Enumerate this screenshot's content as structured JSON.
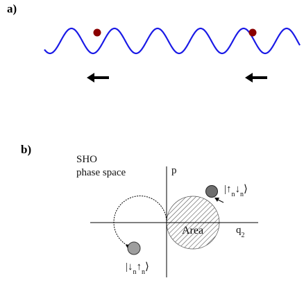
{
  "panel_a": {
    "label": "a)",
    "wave_color": "#1a1ae6",
    "ball_color": "#8b0000",
    "arrow_color": "#000000"
  },
  "panel_b": {
    "label": "b)",
    "title_line1": "SHO",
    "title_line2": "phase space",
    "axis_p": "p",
    "axis_q": "q",
    "axis_q_sub": "2",
    "area_label": "Area",
    "ket_top": {
      "open": "|",
      "s1": "↑",
      "s1_sub": "n",
      "s2": "↓",
      "s2_sub": "n",
      "close": "⟩"
    },
    "ket_bottom": {
      "open": "|",
      "s1": "↓",
      "s1_sub": "n",
      "s2": "↑",
      "s2_sub": "n",
      "close": "⟩"
    },
    "ball_color": "#8a8a8a",
    "hatch_color": "#555555"
  }
}
